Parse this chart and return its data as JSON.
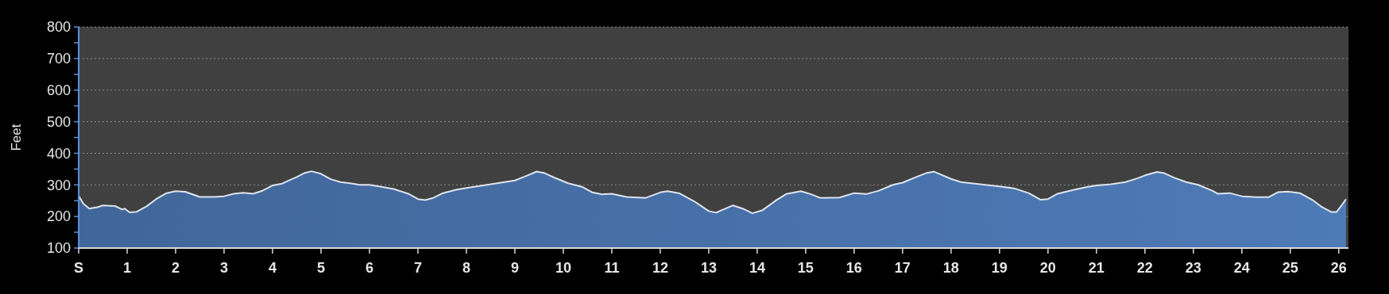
{
  "chart_data": {
    "type": "area",
    "ylabel": "Feet",
    "xlim": [
      0,
      26.2
    ],
    "ylim": [
      100,
      800
    ],
    "xticks": [
      {
        "value": 0,
        "label": "S"
      },
      1,
      2,
      3,
      4,
      5,
      6,
      7,
      8,
      9,
      10,
      11,
      12,
      13,
      14,
      15,
      16,
      17,
      18,
      19,
      20,
      21,
      22,
      23,
      24,
      25,
      26
    ],
    "yticks": [
      100,
      {
        "value": 150,
        "label": null
      },
      200,
      {
        "value": 250,
        "label": null
      },
      300,
      {
        "value": 350,
        "label": null
      },
      400,
      {
        "value": 450,
        "label": null
      },
      500,
      {
        "value": 550,
        "label": null
      },
      600,
      {
        "value": 650,
        "label": null
      },
      700,
      {
        "value": 750,
        "label": null
      },
      800
    ],
    "grid": "y",
    "series": [
      {
        "color": "#4a74ad",
        "x": [
          0,
          0.1,
          0.22,
          0.4,
          0.5,
          0.75,
          0.9,
          0.95,
          1.05,
          1.2,
          1.4,
          1.6,
          1.8,
          2.0,
          2.2,
          2.35,
          2.5,
          2.8,
          3.0,
          3.2,
          3.4,
          3.6,
          3.8,
          4.0,
          4.2,
          4.35,
          4.5,
          4.65,
          4.8,
          5.0,
          5.2,
          5.4,
          5.6,
          5.8,
          6.0,
          6.2,
          6.5,
          6.8,
          7.0,
          7.15,
          7.3,
          7.5,
          7.8,
          8.0,
          8.5,
          9.0,
          9.2,
          9.45,
          9.6,
          9.8,
          10.1,
          10.4,
          10.6,
          10.8,
          11.0,
          11.3,
          11.7,
          12.0,
          12.15,
          12.4,
          12.7,
          13.0,
          13.15,
          13.3,
          13.5,
          13.7,
          13.9,
          14.1,
          14.4,
          14.6,
          14.9,
          15.1,
          15.3,
          15.7,
          16.0,
          16.25,
          16.5,
          16.8,
          17.0,
          17.3,
          17.5,
          17.65,
          18.0,
          18.2,
          18.6,
          19.0,
          19.3,
          19.6,
          19.85,
          20.0,
          20.2,
          20.5,
          20.8,
          21.0,
          21.3,
          21.6,
          21.85,
          22.0,
          22.25,
          22.4,
          22.6,
          22.85,
          23.1,
          23.4,
          23.5,
          23.75,
          24.0,
          24.3,
          24.55,
          24.75,
          24.95,
          25.2,
          25.45,
          25.65,
          25.85,
          25.95,
          26.05,
          26.15
        ],
        "values": [
          265,
          240,
          225,
          230,
          235,
          233,
          222,
          225,
          213,
          215,
          232,
          255,
          273,
          280,
          278,
          270,
          262,
          262,
          264,
          272,
          275,
          272,
          282,
          298,
          304,
          315,
          325,
          337,
          343,
          335,
          318,
          309,
          305,
          300,
          300,
          295,
          287,
          272,
          255,
          252,
          258,
          273,
          285,
          290,
          302,
          314,
          326,
          342,
          338,
          324,
          305,
          293,
          276,
          270,
          272,
          262,
          259,
          276,
          280,
          273,
          248,
          217,
          212,
          222,
          235,
          225,
          210,
          219,
          252,
          271,
          280,
          271,
          259,
          260,
          274,
          271,
          281,
          300,
          307,
          326,
          338,
          342,
          319,
          309,
          302,
          295,
          289,
          274,
          253,
          255,
          272,
          283,
          293,
          298,
          302,
          309,
          321,
          330,
          341,
          337,
          323,
          309,
          300,
          281,
          272,
          274,
          264,
          261,
          261,
          277,
          279,
          274,
          253,
          230,
          214,
          214,
          233,
          255
        ]
      }
    ]
  }
}
